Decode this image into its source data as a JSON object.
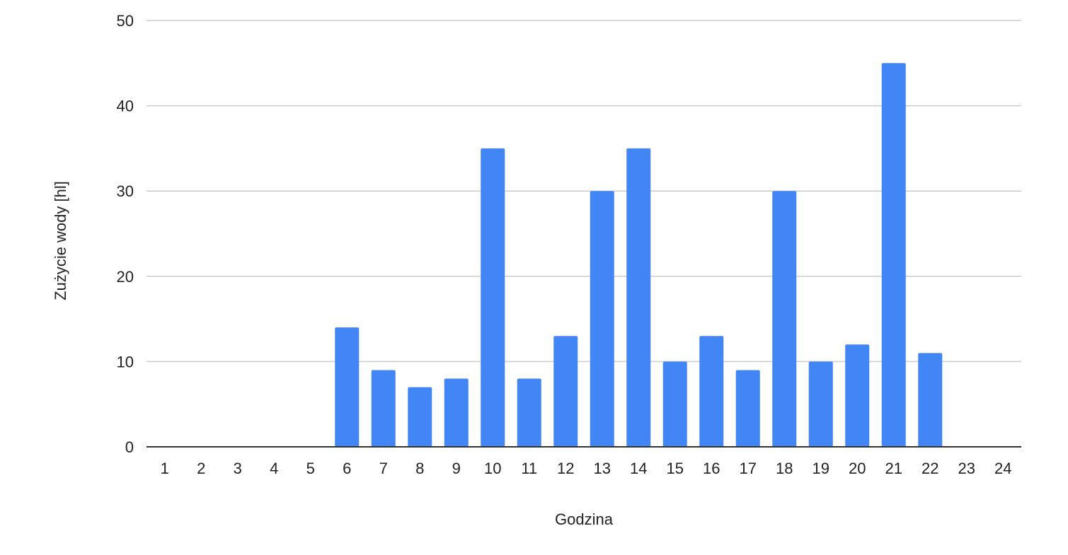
{
  "chart_data": {
    "type": "bar",
    "title": "",
    "xlabel": "Godzina",
    "ylabel": "Zużycie wody [hl]",
    "categories": [
      "1",
      "2",
      "3",
      "4",
      "5",
      "6",
      "7",
      "8",
      "9",
      "10",
      "11",
      "12",
      "13",
      "14",
      "15",
      "16",
      "17",
      "18",
      "19",
      "20",
      "21",
      "22",
      "23",
      "24"
    ],
    "series": [
      {
        "values": [
          0,
          0,
          0,
          0,
          0,
          14,
          9,
          7,
          8,
          35,
          8,
          13,
          30,
          35,
          10,
          13,
          9,
          30,
          10,
          12,
          45,
          11,
          0,
          0
        ],
        "color": "#4285F4"
      }
    ],
    "ylim": [
      0,
      50
    ],
    "yticks": [
      0,
      10,
      20,
      30,
      40,
      50
    ],
    "grid": true,
    "legend": "none"
  },
  "colors": {
    "bar": "#4285F4",
    "grid": "#cccccc",
    "baseline": "#333333",
    "text": "#222222"
  }
}
